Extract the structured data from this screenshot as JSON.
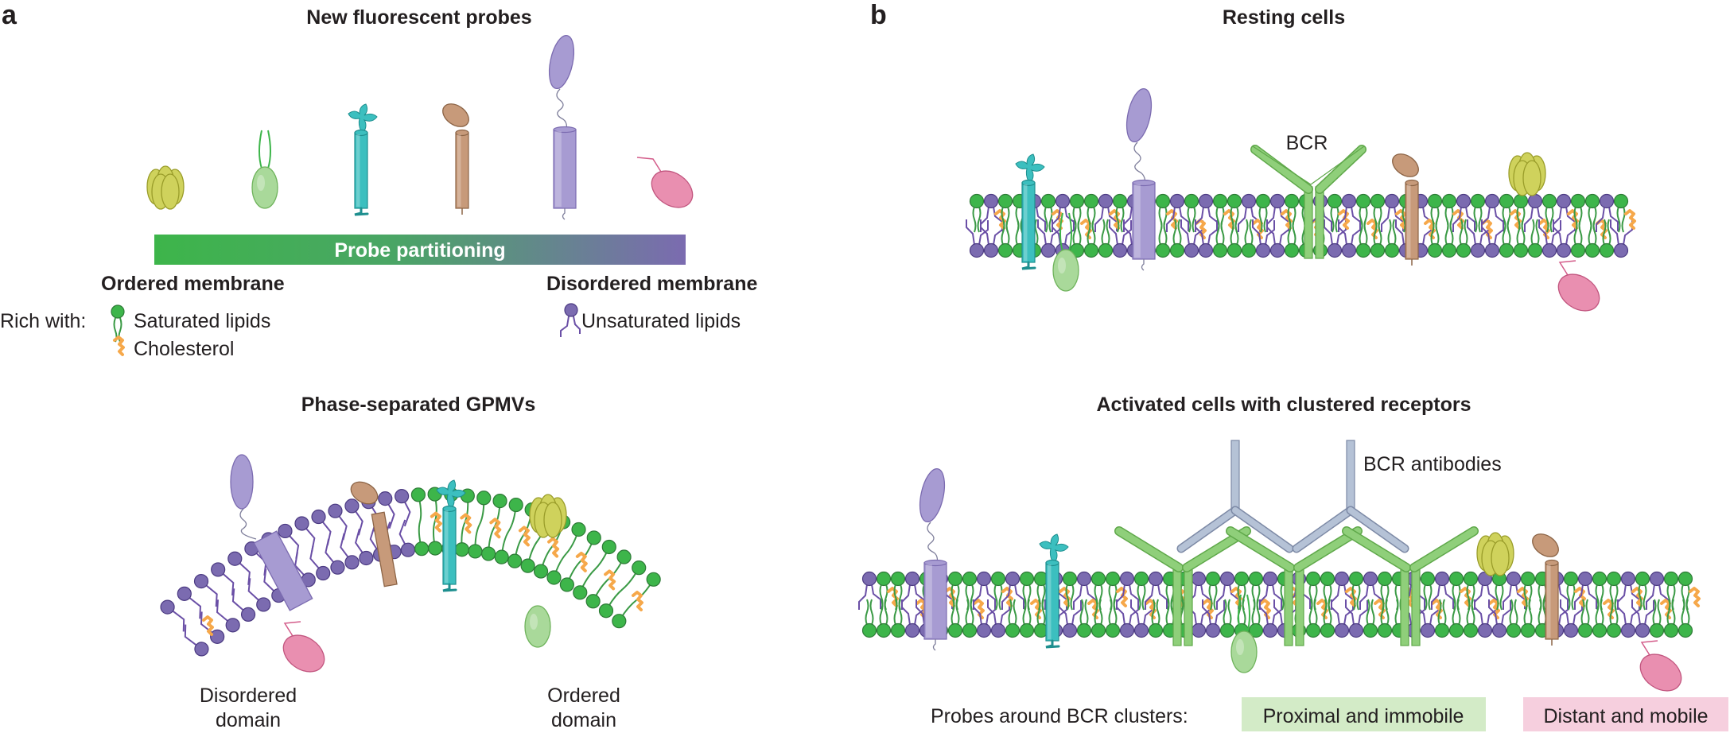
{
  "panel_a": {
    "letter": "a",
    "title_top": "New fluorescent probes",
    "bar_label": "Probe partitioning",
    "ordered_label": "Ordered membrane",
    "disordered_label": "Disordered membrane",
    "rich_with": "Rich with:",
    "saturated": "Saturated lipids",
    "cholesterol": "Cholesterol",
    "unsaturated": "Unsaturated lipids",
    "title_bottom": "Phase-separated GPMVs",
    "disordered_domain_1": "Disordered",
    "disordered_domain_2": "domain",
    "ordered_domain_1": "Ordered",
    "ordered_domain_2": "domain"
  },
  "panel_b": {
    "letter": "b",
    "title_top": "Resting cells",
    "bcr_label": "BCR",
    "title_bottom": "Activated cells with clustered receptors",
    "antibodies_label": "BCR antibodies",
    "probes_label": "Probes around BCR clusters:",
    "proximal": "Proximal and immobile",
    "distant": "Distant and mobile"
  },
  "colors": {
    "ordered_green": "#3db54a",
    "disordered_purple": "#7b6bb0",
    "saturated_lipid": "#3a9a45",
    "unsaturated_lipid": "#6a4fa6",
    "cholesterol": "#f6a84a",
    "teal_probe": "#3cbfbf",
    "brown_probe": "#c79a7a",
    "lavender_probe": "#a79bd2",
    "pink_probe": "#e98fb0",
    "olive_probe": "#cfd25c",
    "pale_green_probe": "#a9d99a",
    "bcr_green": "#8fcf7a",
    "antibody_blue": "#b5c2d6",
    "proximal_box": "#d3ebc7",
    "distant_box": "#f6cfde"
  },
  "icons": [
    "saturated-lipid-icon",
    "cholesterol-icon",
    "unsaturated-lipid-icon",
    "yellow-trimer-probe-icon",
    "pale-green-probe-icon",
    "teal-probe-icon",
    "brown-probe-icon",
    "lavender-probe-icon",
    "pink-probe-icon",
    "bcr-receptor-icon",
    "bcr-antibody-icon"
  ]
}
